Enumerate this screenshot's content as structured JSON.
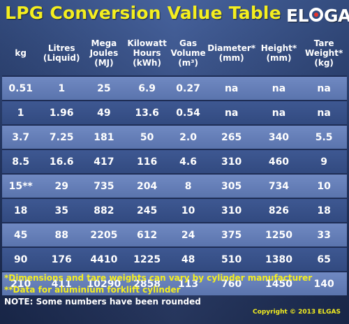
{
  "title": "LPG Conversion Value Table",
  "logo": {
    "text_before": "EL",
    "text_after": "GAS"
  },
  "table": {
    "headers": [
      [
        "kg"
      ],
      [
        "Litres",
        "(Liquid)"
      ],
      [
        "Mega",
        "Joules",
        "(MJ)"
      ],
      [
        "Kilowatt",
        "Hours",
        "(kWh)"
      ],
      [
        "Gas",
        "Volume",
        "(m³)"
      ],
      [
        "Diameter*",
        "(mm)"
      ],
      [
        "Height*",
        "(mm)"
      ],
      [
        "Tare",
        "Weight*",
        "(kg)"
      ]
    ],
    "rows": [
      [
        "0.51",
        "1",
        "25",
        "6.9",
        "0.27",
        "na",
        "na",
        "na"
      ],
      [
        "1",
        "1.96",
        "49",
        "13.6",
        "0.54",
        "na",
        "na",
        "na"
      ],
      [
        "3.7",
        "7.25",
        "181",
        "50",
        "2.0",
        "265",
        "340",
        "5.5"
      ],
      [
        "8.5",
        "16.6",
        "417",
        "116",
        "4.6",
        "310",
        "460",
        "9"
      ],
      [
        "15**",
        "29",
        "735",
        "204",
        "8",
        "305",
        "734",
        "10"
      ],
      [
        "18",
        "35",
        "882",
        "245",
        "10",
        "310",
        "826",
        "18"
      ],
      [
        "45",
        "88",
        "2205",
        "612",
        "24",
        "375",
        "1250",
        "33"
      ],
      [
        "90",
        "176",
        "4410",
        "1225",
        "48",
        "510",
        "1380",
        "65"
      ],
      [
        "210",
        "411",
        "10290",
        "2858",
        "113",
        "760",
        "1450",
        "140"
      ]
    ]
  },
  "notes": [
    "*Dimensions and tare weights can vary by cylinder manufacturer",
    "**Data for aluminium forklift cylinder",
    "NOTE: Some numbers have been rounded"
  ],
  "copyright": "Copyright © 2013 ELGAS",
  "colors": {
    "title": "#f4ee1f",
    "row_light": "#6580bb",
    "row_dark": "#384f87",
    "background": "#2a4073"
  }
}
